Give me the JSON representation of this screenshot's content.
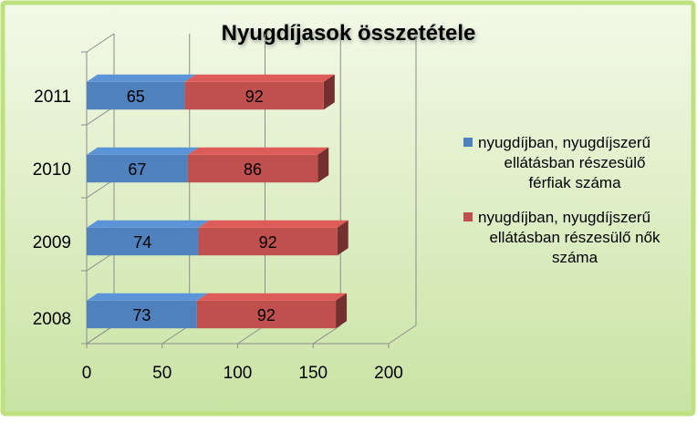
{
  "chart_data": {
    "type": "bar",
    "orientation": "horizontal",
    "stacked": true,
    "three_d": true,
    "title": "Nyugdíjasok összetétele",
    "categories": [
      "2008",
      "2009",
      "2010",
      "2011"
    ],
    "series": [
      {
        "name": "nyugdíjban, nyugdíjszerű ellátásban részesülő férfiak száma",
        "legend_lines": [
          "nyugdíjban, nyugdíjszerű",
          "ellátásban részesülő",
          "férfiak száma"
        ],
        "color": "#4F81BD",
        "values": [
          73,
          74,
          67,
          65
        ],
        "labels": [
          "73",
          "74",
          "67",
          "65"
        ]
      },
      {
        "name": "nyugdíjban, nyugdíjszerű ellátásban részesülő nők száma",
        "legend_lines": [
          "nyugdíjban, nyugdíjszerű",
          "ellátásban részesülő nők",
          "száma"
        ],
        "color": "#C0504D",
        "values": [
          92,
          92,
          86,
          92
        ],
        "labels": [
          "92",
          "92",
          "86",
          "92"
        ]
      }
    ],
    "x_ticks": [
      "0",
      "50",
      "100",
      "150",
      "200"
    ],
    "xlim": [
      0,
      200
    ],
    "gridlines": true,
    "legend_position": "right",
    "background": "green gradient with yellow-green border"
  }
}
